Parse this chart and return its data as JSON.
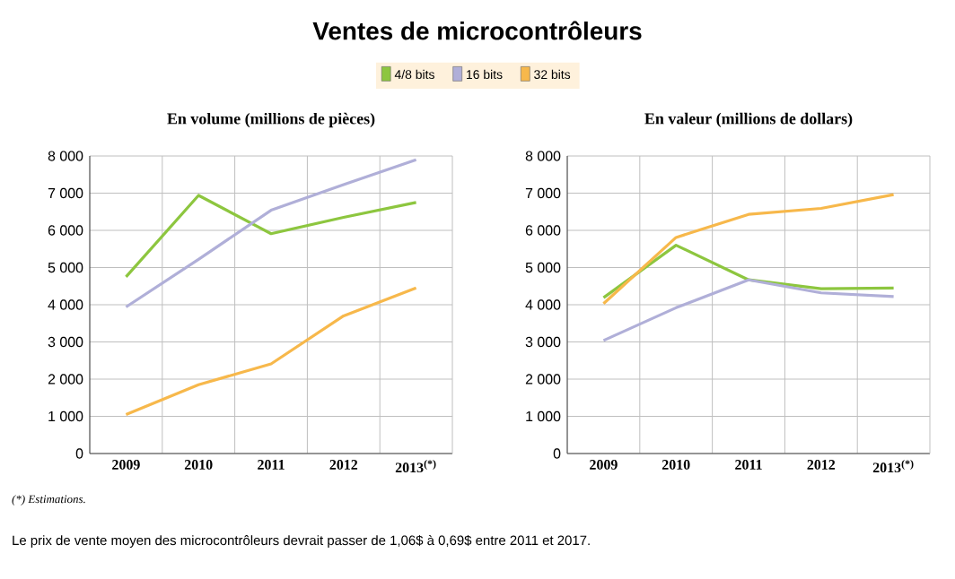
{
  "chart_data": [
    {
      "type": "line",
      "title": "Ventes de microcontrôleurs",
      "subtitle": "En volume (millions de pièces)",
      "categories": [
        "2009",
        "2010",
        "2011",
        "2012",
        "2013$^{(*)}$"
      ],
      "series": [
        {
          "name": "4/8 bits",
          "color": "#8dc63f",
          "values": [
            4750,
            6940,
            5910,
            6350,
            6750
          ]
        },
        {
          "name": "16 bits",
          "color": "#b0afd8",
          "values": [
            3940,
            5220,
            6540,
            7230,
            7900
          ]
        },
        {
          "name": "32 bits",
          "color": "#f7b84b",
          "values": [
            1050,
            1850,
            2410,
            3700,
            4450
          ]
        }
      ],
      "ylim": [
        0,
        8000
      ],
      "yticks": [
        0,
        {
          "value": 1000,
          "label": "1 000"
        },
        {
          "value": 2000,
          "label": "2 000"
        },
        {
          "value": 3000,
          "label": "3 000"
        },
        {
          "value": 4000,
          "label": "4 000"
        },
        {
          "value": 5000,
          "label": "5 000"
        },
        {
          "value": 6000,
          "label": "6 000"
        },
        {
          "value": 7000,
          "label": "7 000"
        },
        {
          "value": 8000,
          "label": "8 000"
        }
      ],
      "grid": true,
      "legend": "top",
      "line_style": "solid",
      "annotations": [
        "(*) Estimations."
      ]
    },
    {
      "type": "line",
      "title": "En valeur (millions de dollars)",
      "categories": [
        "2009",
        "2010",
        "2011",
        "2012",
        "2013$^{(*)}$"
      ],
      "series": [
        {
          "color": "#8dc63f",
          "values": [
            4190,
            5600,
            4670,
            4430,
            4450
          ]
        },
        {
          "color": "#b0afd8",
          "values": [
            3040,
            3920,
            4670,
            4320,
            4220
          ]
        },
        {
          "color": "#f7b84b",
          "values": [
            4030,
            5810,
            6430,
            6590,
            6960
          ]
        }
      ],
      "ylim": [
        0,
        8000
      ],
      "yticks": [
        0,
        {
          "value": 1000,
          "label": "1 000"
        },
        {
          "value": 2000,
          "label": "2 000"
        },
        {
          "value": 3000,
          "label": "3 000"
        },
        {
          "value": 4000,
          "label": "4 000"
        },
        {
          "value": 5000,
          "label": "5 000"
        },
        {
          "value": 6000,
          "label": "6 000"
        },
        {
          "value": 7000,
          "label": "7 000"
        },
        {
          "value": 8000,
          "label": "8 000"
        }
      ],
      "grid": true,
      "line_style": "solid",
      "annotations": [
        "Le prix de vente moyen des microcontrôleurs devrait passer de 1,06$ à 0,69$ entre 2011 et 2017."
      ]
    }
  ]
}
